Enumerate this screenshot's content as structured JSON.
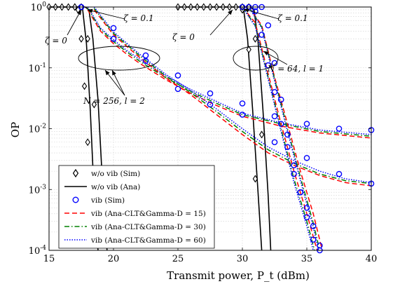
{
  "chart_data": {
    "type": "line",
    "xlabel": "Transmit power, P_t (dBm)",
    "ylabel": "OP",
    "xlim": [
      15,
      40
    ],
    "ylim": [
      0.0001,
      1
    ],
    "yscale": "log",
    "grid": true,
    "legend_position": "bottom-left",
    "x_ticks": [
      "15",
      "20",
      "25",
      "30",
      "35",
      "40"
    ],
    "y_ticks": [
      "10^0",
      "10^-1",
      "10^-2",
      "10^-3",
      "10^-4"
    ],
    "legend": [
      {
        "label": "w/o vib (Sim)",
        "style": "diamond",
        "color": "#000000"
      },
      {
        "label": "w/o vib (Ana)",
        "style": "solid",
        "color": "#000000"
      },
      {
        "label": "vib (Sim)",
        "style": "circle",
        "color": "#0000ff"
      },
      {
        "label": "vib (Ana-CLT&Gamma-D = 15)",
        "style": "dashed",
        "color": "#ff0000"
      },
      {
        "label": "vib (Ana-CLT&Gamma-D = 30)",
        "style": "dashdot",
        "color": "#008000"
      },
      {
        "label": "vib (Ana-CLT&Gamma-D = 60)",
        "style": "dotted",
        "color": "#0000ff"
      }
    ],
    "annotations": [
      {
        "text": "ζ = 0.1"
      },
      {
        "text": "ζ = 0"
      },
      {
        "text": "ζ = 0"
      },
      {
        "text": "ζ = 0.1"
      },
      {
        "text": "N = 64, l = 1"
      },
      {
        "text": "N = 256, l = 2"
      }
    ],
    "series": [
      {
        "name": "w/o vib (Ana)",
        "group": "N=256 ζ=0",
        "x": [
          15,
          17.3,
          17.6,
          17.9,
          18.2,
          18.5,
          18.8
        ],
        "y": [
          1,
          1,
          0.95,
          0.25,
          0.02,
          0.0008,
          0.0001
        ]
      },
      {
        "name": "w/o vib (Ana)",
        "group": "N=256 ζ=0.1",
        "x": [
          15,
          17.8,
          18.1,
          18.4,
          18.8,
          19.1,
          19.5
        ],
        "y": [
          1,
          1,
          0.9,
          0.3,
          0.03,
          0.002,
          0.0001
        ]
      },
      {
        "name": "w/o vib (Sim)",
        "group": "N=256 ζ=0",
        "x": [
          15,
          15.5,
          16,
          16.5,
          17,
          17.25,
          17.5,
          17.75,
          18
        ],
        "y": [
          1,
          1,
          1,
          1,
          1,
          0.9,
          0.3,
          0.05,
          0.006
        ]
      },
      {
        "name": "w/o vib (Sim)",
        "group": "N=256 ζ=0.1",
        "x": [
          17,
          17.5,
          18,
          18.5
        ],
        "y": [
          1,
          1,
          0.3,
          0.025
        ]
      },
      {
        "name": "w/o vib (Ana)",
        "group": "N=64 ζ=0",
        "x": [
          25,
          29.8,
          30.1,
          30.4,
          30.8,
          31.2,
          31.5
        ],
        "y": [
          1,
          1,
          0.9,
          0.3,
          0.02,
          0.001,
          0.0001
        ]
      },
      {
        "name": "w/o vib (Ana)",
        "group": "N=64 ζ=0.1",
        "x": [
          25,
          30.6,
          30.9,
          31.2,
          31.6,
          32.0,
          32.2
        ],
        "y": [
          1,
          1,
          0.9,
          0.3,
          0.02,
          0.0008,
          0.0001
        ]
      },
      {
        "name": "w/o vib (Sim)",
        "group": "N=64 ζ=0",
        "x": [
          25,
          25.5,
          26,
          26.5,
          27,
          27.5,
          28,
          28.5,
          29,
          29.5,
          30,
          30.5,
          31
        ],
        "y": [
          1,
          1,
          1,
          1,
          1,
          1,
          1,
          1,
          1,
          1,
          0.9,
          0.2,
          0.0015
        ]
      },
      {
        "name": "w/o vib (Sim)",
        "group": "N=64 ζ=0.1",
        "x": [
          30,
          30.5,
          31,
          31.5
        ],
        "y": [
          1,
          1,
          0.3,
          0.008
        ]
      },
      {
        "name": "vib (Ana-CLT&Gamma-D = 15)",
        "group": "N=256 ζ=0",
        "x": [
          18,
          19,
          20,
          21,
          22,
          24,
          26,
          28,
          30,
          33,
          36,
          40
        ],
        "y": [
          0.9,
          0.4,
          0.25,
          0.17,
          0.12,
          0.065,
          0.038,
          0.024,
          0.016,
          0.011,
          0.0085,
          0.007
        ]
      },
      {
        "name": "vib (Ana-CLT&Gamma-D = 30)",
        "group": "N=256 ζ=0",
        "x": [
          18,
          19,
          20,
          21,
          22,
          24,
          26,
          28,
          30,
          33,
          36,
          40
        ],
        "y": [
          0.95,
          0.43,
          0.27,
          0.185,
          0.13,
          0.07,
          0.041,
          0.026,
          0.017,
          0.012,
          0.009,
          0.0075
        ]
      },
      {
        "name": "vib (Ana-CLT&Gamma-D = 60)",
        "group": "N=256 ζ=0",
        "x": [
          18,
          19,
          20,
          21,
          22,
          24,
          26,
          28,
          30,
          33,
          36,
          40
        ],
        "y": [
          1,
          0.45,
          0.29,
          0.195,
          0.14,
          0.075,
          0.044,
          0.028,
          0.018,
          0.0125,
          0.0095,
          0.008
        ]
      },
      {
        "name": "vib (Ana-CLT&Gamma-D = 15)",
        "group": "N=256 ζ=0.1",
        "x": [
          18.5,
          20,
          22,
          24,
          26,
          28,
          30,
          32,
          34,
          36,
          38,
          40
        ],
        "y": [
          0.9,
          0.35,
          0.15,
          0.07,
          0.036,
          0.017,
          0.008,
          0.004,
          0.0025,
          0.0017,
          0.0013,
          0.00115
        ]
      },
      {
        "name": "vib (Ana-CLT&Gamma-D = 30)",
        "group": "N=256 ζ=0.1",
        "x": [
          18.5,
          20,
          22,
          24,
          26,
          28,
          30,
          32,
          34,
          36,
          38,
          40
        ],
        "y": [
          0.95,
          0.37,
          0.16,
          0.075,
          0.039,
          0.019,
          0.009,
          0.0045,
          0.0027,
          0.0018,
          0.0014,
          0.00125
        ]
      },
      {
        "name": "vib (Ana-CLT&Gamma-D = 60)",
        "group": "N=256 ζ=0.1",
        "x": [
          18.5,
          20,
          22,
          24,
          26,
          28,
          30,
          32,
          34,
          36,
          38,
          40
        ],
        "y": [
          1,
          0.39,
          0.17,
          0.08,
          0.042,
          0.021,
          0.01,
          0.005,
          0.003,
          0.002,
          0.0015,
          0.0013
        ]
      },
      {
        "name": "vib (Ana-CLT&Gamma-D = 15)",
        "group": "N=64 ζ=0",
        "x": [
          30,
          31,
          32,
          33,
          34,
          35,
          35.8
        ],
        "y": [
          1,
          0.55,
          0.08,
          0.012,
          0.002,
          0.0004,
          0.0001
        ]
      },
      {
        "name": "vib (Ana-CLT&Gamma-D = 30)",
        "group": "N=64 ζ=0",
        "x": [
          30,
          31,
          32,
          33,
          34,
          35,
          35.6
        ],
        "y": [
          1,
          0.5,
          0.07,
          0.01,
          0.0015,
          0.0003,
          0.0001
        ]
      },
      {
        "name": "vib (Ana-CLT&Gamma-D = 60)",
        "group": "N=64 ζ=0",
        "x": [
          30,
          31,
          32,
          33,
          34,
          35,
          35.5
        ],
        "y": [
          1,
          0.48,
          0.065,
          0.009,
          0.0013,
          0.00025,
          0.0001
        ]
      },
      {
        "name": "vib (Ana-CLT&Gamma-D = 15)",
        "group": "N=64 ζ=0.1",
        "x": [
          30.5,
          31.5,
          32.5,
          33.5,
          34.5,
          35.5,
          36.2
        ],
        "y": [
          1,
          0.5,
          0.07,
          0.012,
          0.002,
          0.0004,
          0.0001
        ]
      },
      {
        "name": "vib (Ana-CLT&Gamma-D = 30)",
        "group": "N=64 ζ=0.1",
        "x": [
          30.5,
          31.5,
          32.5,
          33.5,
          34.5,
          35.5,
          36
        ],
        "y": [
          1,
          0.47,
          0.065,
          0.01,
          0.0016,
          0.00028,
          0.0001
        ]
      },
      {
        "name": "vib (Ana-CLT&Gamma-D = 60)",
        "group": "N=64 ζ=0.1",
        "x": [
          30.5,
          31.5,
          32.5,
          33.5,
          34.5,
          35.5,
          35.9
        ],
        "y": [
          1,
          0.45,
          0.06,
          0.009,
          0.0014,
          0.00024,
          0.0001
        ]
      },
      {
        "name": "vib (Sim)",
        "group": "N=256 ζ=0",
        "x": [
          17.5,
          20,
          22.5,
          25,
          27.5,
          30,
          32.5,
          35,
          37.5,
          40
        ],
        "y": [
          1,
          0.3,
          0.13,
          0.075,
          0.038,
          0.026,
          0.016,
          0.012,
          0.01,
          0.0095
        ]
      },
      {
        "name": "vib (Sim)",
        "group": "N=256 ζ=0.1",
        "x": [
          17.5,
          20,
          22.5,
          25,
          27.5,
          30,
          32.5,
          35,
          37.5,
          40
        ],
        "y": [
          1,
          0.45,
          0.16,
          0.045,
          0.025,
          0.017,
          0.006,
          0.0033,
          0.0018,
          0.00125
        ]
      },
      {
        "name": "vib (Sim)",
        "group": "N=64 ζ=0",
        "x": [
          30,
          30.5,
          31,
          31.5,
          32,
          32.5,
          33,
          33.5,
          34,
          34.5,
          35,
          35.5,
          36
        ],
        "y": [
          1,
          1,
          0.85,
          0.35,
          0.11,
          0.04,
          0.012,
          0.005,
          0.0018,
          0.0009,
          0.0005,
          0.00015,
          0.0001
        ]
      },
      {
        "name": "vib (Sim)",
        "group": "N=64 ζ=0.1",
        "x": [
          31,
          31.5,
          32,
          32.5,
          33,
          33.5,
          34,
          34.5,
          35,
          35.5,
          36
        ],
        "y": [
          1,
          1,
          0.5,
          0.12,
          0.03,
          0.008,
          0.0025,
          0.0009,
          0.00035,
          0.00025,
          0.00012
        ]
      }
    ]
  }
}
